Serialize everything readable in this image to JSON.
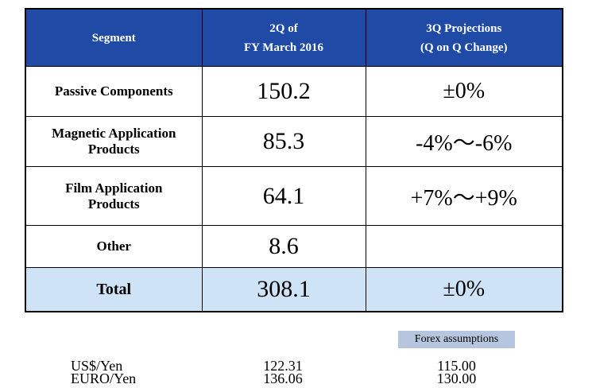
{
  "table": {
    "headers": {
      "segment": "Segment",
      "col2_line1": "2Q of",
      "col2_line2": "FY March 2016",
      "col3_line1": "3Q Projections",
      "col3_line2": "(Q on Q Change)"
    },
    "rows": [
      {
        "label_line1": "Passive Components",
        "label_line2": "",
        "q2": "150.2",
        "q3": "±0%"
      },
      {
        "label_line1": "Magnetic Application",
        "label_line2": "Products",
        "q2": "85.3",
        "q3": "-4%～-6%"
      },
      {
        "label_line1": "Film Application",
        "label_line2": "Products",
        "q2": "64.1",
        "q3": "+7%～+9%"
      },
      {
        "label_line1": "Other",
        "label_line2": "",
        "q2": "8.6",
        "q3": ""
      }
    ],
    "total": {
      "label": "Total",
      "q2": "308.1",
      "q3": "±0%"
    }
  },
  "forex": {
    "tag": "Forex assumptions",
    "rows": [
      {
        "label": "US$/Yen",
        "q2": "122.31",
        "q3": "115.00"
      },
      {
        "label": "EURO/Yen",
        "q2": "136.06",
        "q3": "130.00"
      }
    ]
  },
  "colors": {
    "header_bg": "#1f4aa6",
    "total_bg": "#cfe3f6",
    "forex_tag_bg": "#b7c6df"
  }
}
